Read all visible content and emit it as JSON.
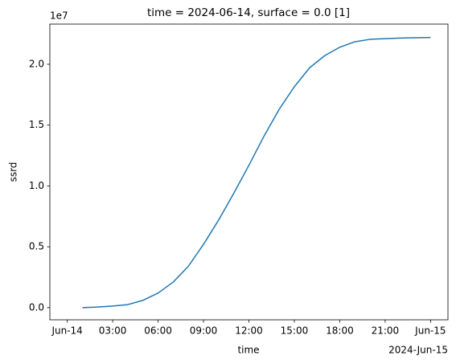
{
  "chart_data": {
    "type": "line",
    "title": "time = 2024-06-14, surface = 0.0 [1]",
    "x_label": "time",
    "y_label": "ssrd",
    "y_offset_label": "1e7",
    "x_offset_label": "2024-Jun-15",
    "x": [
      "2024-06-14 01:00",
      "2024-06-14 02:00",
      "2024-06-14 03:00",
      "2024-06-14 04:00",
      "2024-06-14 05:00",
      "2024-06-14 06:00",
      "2024-06-14 07:00",
      "2024-06-14 08:00",
      "2024-06-14 09:00",
      "2024-06-14 10:00",
      "2024-06-14 11:00",
      "2024-06-14 12:00",
      "2024-06-14 13:00",
      "2024-06-14 14:00",
      "2024-06-14 15:00",
      "2024-06-14 16:00",
      "2024-06-14 17:00",
      "2024-06-14 18:00",
      "2024-06-14 19:00",
      "2024-06-14 20:00",
      "2024-06-14 21:00",
      "2024-06-14 22:00",
      "2024-06-14 23:00",
      "2024-06-15 00:00"
    ],
    "series": [
      {
        "color": "#1f77b4",
        "values": [
          0,
          50000,
          130000,
          250000,
          600000,
          1200000,
          2100000,
          3400000,
          5200000,
          7200000,
          9400000,
          11700000,
          14100000,
          16300000,
          18150000,
          19700000,
          20700000,
          21400000,
          21850000,
          22050000,
          22100000,
          22150000,
          22180000,
          22200000
        ]
      }
    ],
    "xlim": [
      "2024-06-13 22:51",
      "2024-06-15 01:09"
    ],
    "xticks": [
      {
        "value": "2024-06-14 00:00",
        "label": "Jun-14"
      },
      {
        "value": "2024-06-14 03:00",
        "label": "03:00"
      },
      {
        "value": "2024-06-14 06:00",
        "label": "06:00"
      },
      {
        "value": "2024-06-14 09:00",
        "label": "09:00"
      },
      {
        "value": "2024-06-14 12:00",
        "label": "12:00"
      },
      {
        "value": "2024-06-14 15:00",
        "label": "15:00"
      },
      {
        "value": "2024-06-14 18:00",
        "label": "18:00"
      },
      {
        "value": "2024-06-14 21:00",
        "label": "21:00"
      },
      {
        "value": "2024-06-15 00:00",
        "label": "Jun-15"
      }
    ],
    "ylim": [
      -1000000,
      23300000
    ],
    "yticks": [
      {
        "value": 0,
        "label": "0.0"
      },
      {
        "value": 5000000,
        "label": "0.5"
      },
      {
        "value": 10000000,
        "label": "1.0"
      },
      {
        "value": 15000000,
        "label": "1.5"
      },
      {
        "value": 20000000,
        "label": "2.0"
      }
    ],
    "grid": false
  }
}
